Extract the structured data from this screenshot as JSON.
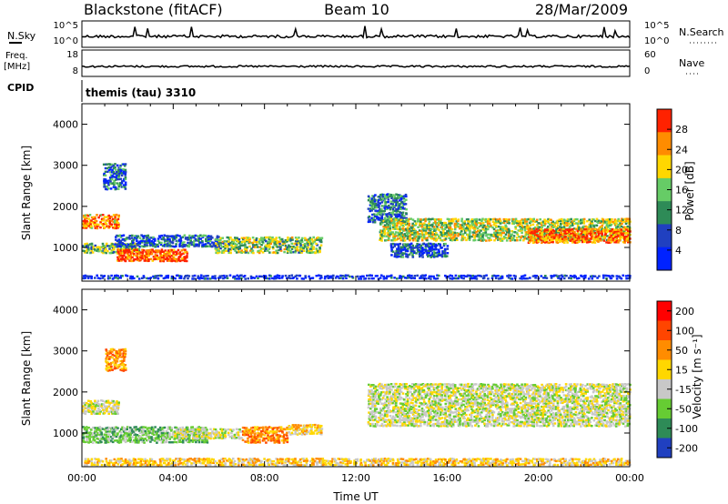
{
  "header": {
    "site": "Blackstone (fitACF)",
    "beam": "Beam 10",
    "date": "28/Mar/2009"
  },
  "strips": {
    "noise": {
      "left_label": "N.Sky",
      "right_label": "N.Search",
      "left_ticks": [
        "10^5",
        "10^0"
      ],
      "right_ticks": [
        "10^5",
        "10^0"
      ]
    },
    "freq": {
      "left_label_1": "Freq.",
      "left_label_2": "[MHz]",
      "right_label": "Nave",
      "left_ticks": [
        "18",
        "8"
      ],
      "right_ticks": [
        "60",
        "0"
      ]
    },
    "cpid": {
      "label": "CPID",
      "text": "themis (tau) 3310"
    }
  },
  "chart_data": [
    {
      "type": "heatmap",
      "parameter": "power",
      "ylabel": "Slant Range [km]",
      "xlabel": "",
      "x_range_hours": [
        0,
        24
      ],
      "ylim": [
        180,
        4500
      ],
      "y_ticks": [
        "1000",
        "2000",
        "3000",
        "4000"
      ],
      "colorbar": {
        "label": "Power [dB]",
        "ticks": [
          "4",
          "8",
          "12",
          "16",
          "20",
          "24",
          "28"
        ],
        "range": [
          0,
          32
        ],
        "colors": [
          "#0022ff",
          "#2040c0",
          "#2e8b57",
          "#66cc66",
          "#ffd700",
          "#ff8c00",
          "#ff2200"
        ]
      },
      "regions": [
        {
          "t0": 0.0,
          "t1": 1.6,
          "r0": 1450,
          "r1": 1800,
          "level": 0.8
        },
        {
          "t0": 0.9,
          "t1": 1.9,
          "r0": 2400,
          "r1": 3050,
          "level": 0.25
        },
        {
          "t0": 0.0,
          "t1": 2.5,
          "r0": 850,
          "r1": 1100,
          "level": 0.45
        },
        {
          "t0": 1.5,
          "t1": 4.6,
          "r0": 650,
          "r1": 950,
          "level": 0.9
        },
        {
          "t0": 1.4,
          "t1": 6.0,
          "r0": 1000,
          "r1": 1300,
          "level": 0.25
        },
        {
          "t0": 5.8,
          "t1": 10.5,
          "r0": 850,
          "r1": 1250,
          "level": 0.5
        },
        {
          "t0": 12.5,
          "t1": 14.2,
          "r0": 1600,
          "r1": 2300,
          "level": 0.3
        },
        {
          "t0": 13.0,
          "t1": 24.0,
          "r0": 1150,
          "r1": 1700,
          "level": 0.55
        },
        {
          "t0": 19.5,
          "t1": 24.0,
          "r0": 1100,
          "r1": 1450,
          "level": 0.85
        },
        {
          "t0": 13.5,
          "t1": 16.0,
          "r0": 750,
          "r1": 1100,
          "level": 0.2
        },
        {
          "t0": 0.0,
          "t1": 24.0,
          "r0": 220,
          "r1": 330,
          "level": 0.1
        }
      ]
    },
    {
      "type": "heatmap",
      "parameter": "velocity",
      "ylabel": "Slant Range [km]",
      "xlabel": "Time UT",
      "x_range_hours": [
        0,
        24
      ],
      "ylim": [
        180,
        4500
      ],
      "y_ticks": [
        "1000",
        "2000",
        "3000",
        "4000"
      ],
      "x_ticks": [
        "00:00",
        "04:00",
        "08:00",
        "12:00",
        "16:00",
        "20:00",
        "00:00"
      ],
      "colorbar": {
        "label": "Velocity [m s⁻¹]",
        "ticks": [
          "200",
          "100",
          "50",
          "15",
          "-15",
          "-50",
          "-100",
          "-200"
        ],
        "colors": [
          "#2040c0",
          "#2e8b57",
          "#66cc33",
          "#c8c8c8",
          "#ffd700",
          "#ff8c00",
          "#ff4500",
          "#ff0000"
        ]
      },
      "regions": [
        {
          "t0": 0.0,
          "t1": 1.6,
          "r0": 1450,
          "r1": 1800,
          "level": 3
        },
        {
          "t0": 1.0,
          "t1": 1.9,
          "r0": 2500,
          "r1": 3050,
          "level": 5
        },
        {
          "t0": 0.0,
          "t1": 5.5,
          "r0": 750,
          "r1": 1150,
          "level": 2
        },
        {
          "t0": 4.0,
          "t1": 7.0,
          "r0": 850,
          "r1": 1100,
          "level": 3
        },
        {
          "t0": 7.0,
          "t1": 9.0,
          "r0": 750,
          "r1": 1150,
          "level": 5
        },
        {
          "t0": 9.0,
          "t1": 10.5,
          "r0": 950,
          "r1": 1200,
          "level": 4
        },
        {
          "t0": 12.5,
          "t1": 24.0,
          "r0": 1150,
          "r1": 2200,
          "level": 3
        },
        {
          "t0": 0.0,
          "t1": 24.0,
          "r0": 200,
          "r1": 380,
          "level": 4
        }
      ]
    }
  ]
}
